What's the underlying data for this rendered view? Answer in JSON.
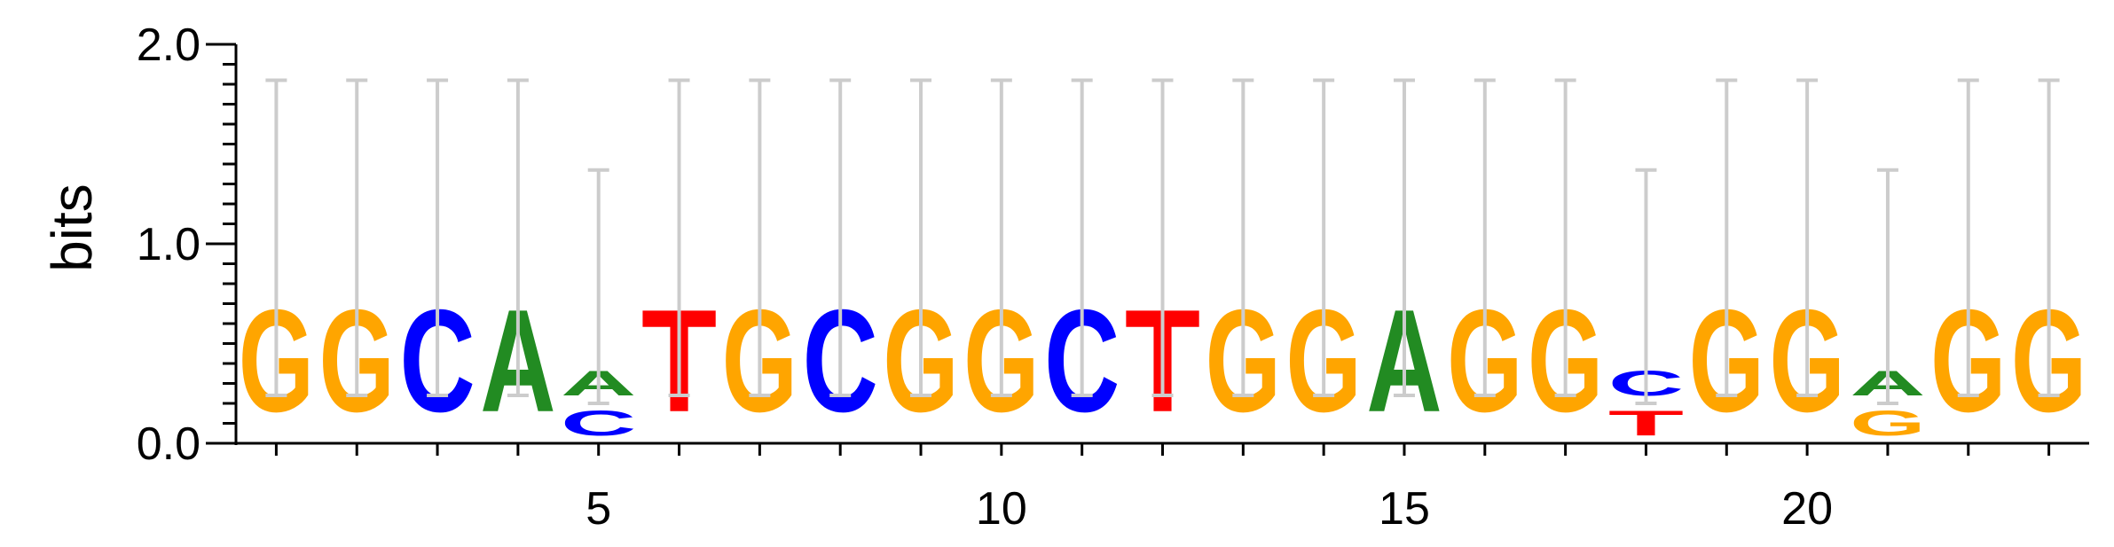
{
  "chart_data": {
    "type": "sequence-logo",
    "ylabel": "bits",
    "ylim": [
      0,
      2.0
    ],
    "y_ticks": [
      "0.0",
      "1.0",
      "2.0"
    ],
    "x_ticks": [
      5,
      10,
      15,
      20
    ],
    "x_positions": 23,
    "colors": {
      "A": "#228b22",
      "C": "#0000ff",
      "G": "#ffa500",
      "T": "#ff0000"
    },
    "positions": [
      {
        "pos": 1,
        "letters": [
          {
            "base": "G",
            "bits": 0.82
          }
        ],
        "error": [
          0.24,
          1.82
        ]
      },
      {
        "pos": 2,
        "letters": [
          {
            "base": "G",
            "bits": 0.82
          }
        ],
        "error": [
          0.24,
          1.82
        ]
      },
      {
        "pos": 3,
        "letters": [
          {
            "base": "C",
            "bits": 0.82
          }
        ],
        "error": [
          0.24,
          1.82
        ]
      },
      {
        "pos": 4,
        "letters": [
          {
            "base": "A",
            "bits": 0.82
          }
        ],
        "error": [
          0.24,
          1.82
        ]
      },
      {
        "pos": 5,
        "letters": [
          {
            "base": "C",
            "bits": 0.2
          },
          {
            "base": "A",
            "bits": 0.2
          }
        ],
        "error": [
          0.2,
          1.37
        ]
      },
      {
        "pos": 6,
        "letters": [
          {
            "base": "T",
            "bits": 0.82
          }
        ],
        "error": [
          0.24,
          1.82
        ]
      },
      {
        "pos": 7,
        "letters": [
          {
            "base": "G",
            "bits": 0.82
          }
        ],
        "error": [
          0.24,
          1.82
        ]
      },
      {
        "pos": 8,
        "letters": [
          {
            "base": "C",
            "bits": 0.82
          }
        ],
        "error": [
          0.24,
          1.82
        ]
      },
      {
        "pos": 9,
        "letters": [
          {
            "base": "G",
            "bits": 0.82
          }
        ],
        "error": [
          0.24,
          1.82
        ]
      },
      {
        "pos": 10,
        "letters": [
          {
            "base": "G",
            "bits": 0.82
          }
        ],
        "error": [
          0.24,
          1.82
        ]
      },
      {
        "pos": 11,
        "letters": [
          {
            "base": "C",
            "bits": 0.82
          }
        ],
        "error": [
          0.24,
          1.82
        ]
      },
      {
        "pos": 12,
        "letters": [
          {
            "base": "T",
            "bits": 0.82
          }
        ],
        "error": [
          0.24,
          1.82
        ]
      },
      {
        "pos": 13,
        "letters": [
          {
            "base": "G",
            "bits": 0.82
          }
        ],
        "error": [
          0.24,
          1.82
        ]
      },
      {
        "pos": 14,
        "letters": [
          {
            "base": "G",
            "bits": 0.82
          }
        ],
        "error": [
          0.24,
          1.82
        ]
      },
      {
        "pos": 15,
        "letters": [
          {
            "base": "A",
            "bits": 0.82
          }
        ],
        "error": [
          0.24,
          1.82
        ]
      },
      {
        "pos": 16,
        "letters": [
          {
            "base": "G",
            "bits": 0.82
          }
        ],
        "error": [
          0.24,
          1.82
        ]
      },
      {
        "pos": 17,
        "letters": [
          {
            "base": "G",
            "bits": 0.82
          }
        ],
        "error": [
          0.24,
          1.82
        ]
      },
      {
        "pos": 18,
        "letters": [
          {
            "base": "T",
            "bits": 0.2
          },
          {
            "base": "C",
            "bits": 0.2
          }
        ],
        "error": [
          0.2,
          1.37
        ]
      },
      {
        "pos": 19,
        "letters": [
          {
            "base": "G",
            "bits": 0.82
          }
        ],
        "error": [
          0.24,
          1.82
        ]
      },
      {
        "pos": 20,
        "letters": [
          {
            "base": "G",
            "bits": 0.82
          }
        ],
        "error": [
          0.24,
          1.82
        ]
      },
      {
        "pos": 21,
        "letters": [
          {
            "base": "G",
            "bits": 0.2
          },
          {
            "base": "A",
            "bits": 0.2
          }
        ],
        "error": [
          0.2,
          1.37
        ]
      },
      {
        "pos": 22,
        "letters": [
          {
            "base": "G",
            "bits": 0.82
          }
        ],
        "error": [
          0.24,
          1.82
        ]
      },
      {
        "pos": 23,
        "letters": [
          {
            "base": "G",
            "bits": 0.82
          }
        ],
        "error": [
          0.24,
          1.82
        ]
      }
    ]
  }
}
